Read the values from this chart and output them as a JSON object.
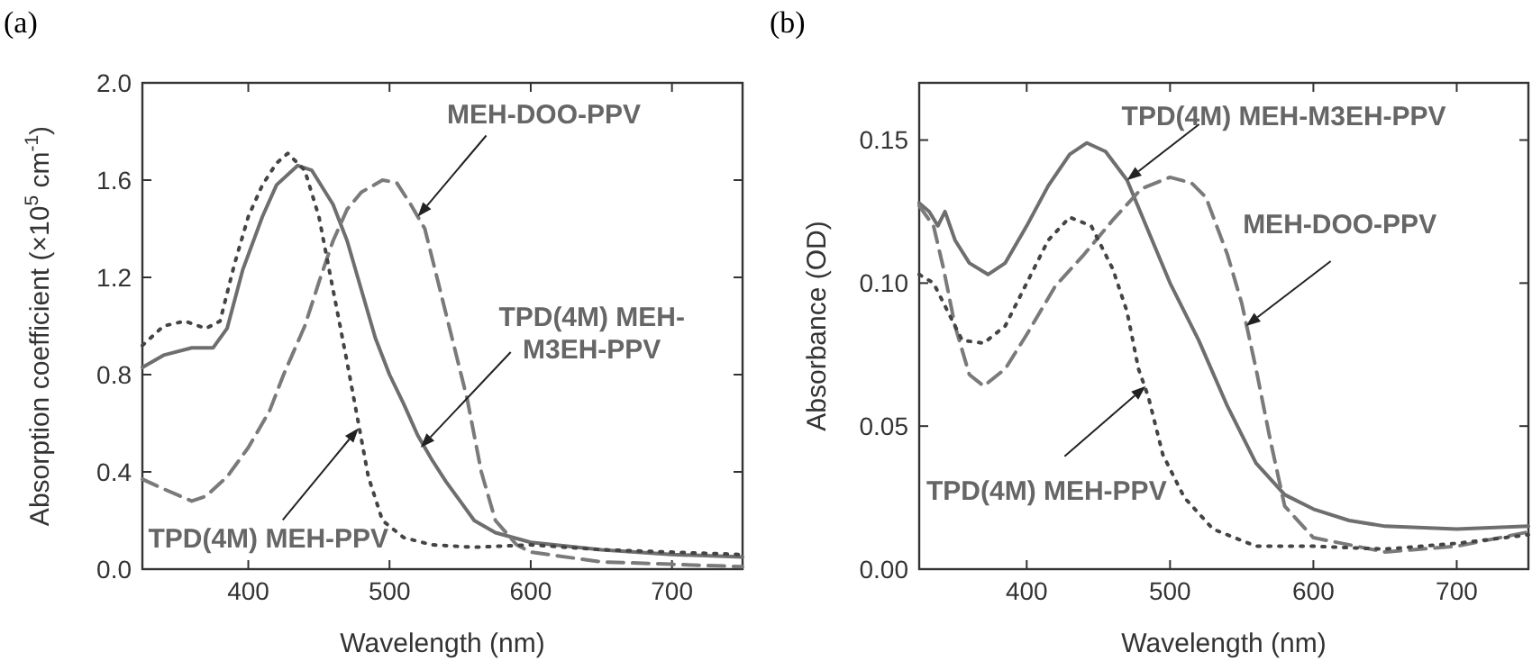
{
  "chart_data": [
    {
      "type": "line",
      "title": "(a)",
      "xlabel": "Wavelength (nm)",
      "ylabel": "Absorption coefficient (×10$^{5}$ cm$^{-1}$)",
      "xlim": [
        325,
        750
      ],
      "ylim": [
        0,
        2.0
      ],
      "xticks": [
        400,
        500,
        600,
        700
      ],
      "yticks": [
        {
          "value": 0,
          "label": "0.0"
        },
        0.4,
        0.8,
        1.2,
        1.6,
        {
          "value": 2,
          "label": "2.0"
        }
      ],
      "grid": false,
      "series": [
        {
          "color": "#6e6e6e",
          "line_style": "solid",
          "x": [
            325,
            340,
            360,
            375,
            385,
            396,
            410,
            420,
            435,
            445,
            460,
            470,
            480,
            490,
            500,
            510,
            520,
            530,
            540,
            550,
            560,
            575,
            600,
            650,
            700,
            750
          ],
          "values": [
            0.83,
            0.88,
            0.91,
            0.91,
            0.99,
            1.23,
            1.45,
            1.58,
            1.66,
            1.64,
            1.5,
            1.35,
            1.15,
            0.95,
            0.8,
            0.68,
            0.55,
            0.45,
            0.36,
            0.28,
            0.2,
            0.15,
            0.11,
            0.08,
            0.06,
            0.05
          ]
        },
        {
          "color": "#7a7a7a",
          "line_style": "dashed",
          "x": [
            325,
            340,
            360,
            370,
            385,
            400,
            415,
            425,
            440,
            450,
            460,
            470,
            480,
            495,
            505,
            515,
            525,
            540,
            555,
            565,
            575,
            590,
            600,
            650,
            700,
            750
          ],
          "values": [
            0.37,
            0.33,
            0.28,
            0.3,
            0.38,
            0.5,
            0.65,
            0.8,
            1.0,
            1.18,
            1.35,
            1.48,
            1.55,
            1.6,
            1.59,
            1.5,
            1.4,
            1.05,
            0.7,
            0.4,
            0.2,
            0.1,
            0.07,
            0.03,
            0.02,
            0.01
          ]
        },
        {
          "color": "#444444",
          "line_style": "dotted",
          "x": [
            325,
            340,
            355,
            370,
            380,
            390,
            400,
            410,
            420,
            428,
            440,
            450,
            460,
            470,
            478,
            485,
            495,
            510,
            530,
            560,
            600,
            650,
            700,
            750
          ],
          "values": [
            0.92,
            1.0,
            1.02,
            0.99,
            1.02,
            1.25,
            1.45,
            1.58,
            1.67,
            1.71,
            1.64,
            1.45,
            1.15,
            0.85,
            0.6,
            0.38,
            0.2,
            0.13,
            0.1,
            0.09,
            0.1,
            0.08,
            0.07,
            0.06
          ]
        }
      ],
      "annotations": [
        {
          "text": "MEH-DOO-PPV",
          "x": 520,
          "y": 1.45
        },
        {
          "text": "TPD(4M) MEH-\nM3EH-PPV",
          "x": 522,
          "y": 0.5
        },
        {
          "text": "TPD(4M) MEH-PPV",
          "x": 478,
          "y": 0.58
        }
      ]
    },
    {
      "type": "line",
      "title": "(b)",
      "xlabel": "Wavelength (nm)",
      "ylabel": "Absorbance (OD)",
      "xlim": [
        325,
        750
      ],
      "ylim": [
        0,
        0.17
      ],
      "xticks": [
        400,
        500,
        600,
        700
      ],
      "yticks": [
        {
          "value": 0,
          "label": "0.00"
        },
        0.05,
        {
          "value": 0.1,
          "label": "0.10"
        },
        0.15
      ],
      "grid": false,
      "series": [
        {
          "color": "#6e6e6e",
          "line_style": "solid",
          "x": [
            325,
            332,
            338,
            343,
            350,
            360,
            373,
            385,
            400,
            415,
            430,
            442,
            455,
            470,
            485,
            500,
            520,
            540,
            560,
            580,
            600,
            625,
            650,
            700,
            750
          ],
          "values": [
            0.128,
            0.125,
            0.12,
            0.125,
            0.115,
            0.107,
            0.103,
            0.107,
            0.12,
            0.134,
            0.145,
            0.149,
            0.146,
            0.136,
            0.118,
            0.1,
            0.08,
            0.057,
            0.037,
            0.026,
            0.021,
            0.017,
            0.015,
            0.014,
            0.015
          ]
        },
        {
          "color": "#7a7a7a",
          "line_style": "dashed",
          "x": [
            325,
            335,
            342,
            350,
            360,
            370,
            385,
            400,
            420,
            440,
            460,
            480,
            500,
            515,
            525,
            540,
            550,
            560,
            570,
            580,
            600,
            650,
            700,
            750
          ],
          "values": [
            0.127,
            0.12,
            0.105,
            0.085,
            0.068,
            0.064,
            0.07,
            0.082,
            0.099,
            0.11,
            0.122,
            0.133,
            0.137,
            0.135,
            0.13,
            0.11,
            0.093,
            0.07,
            0.045,
            0.022,
            0.011,
            0.006,
            0.008,
            0.013
          ]
        },
        {
          "color": "#444444",
          "line_style": "dotted",
          "x": [
            325,
            335,
            345,
            355,
            370,
            385,
            400,
            415,
            430,
            445,
            460,
            470,
            478,
            485,
            495,
            510,
            530,
            560,
            600,
            650,
            700,
            750
          ],
          "values": [
            0.103,
            0.1,
            0.09,
            0.08,
            0.079,
            0.085,
            0.1,
            0.115,
            0.123,
            0.12,
            0.105,
            0.09,
            0.07,
            0.06,
            0.04,
            0.025,
            0.014,
            0.008,
            0.008,
            0.007,
            0.009,
            0.012
          ]
        }
      ],
      "annotations": [
        {
          "text": "TPD(4M) MEH-M3EH-PPV",
          "x": 470,
          "y": 0.136
        },
        {
          "text": "MEH-DOO-PPV",
          "x": 553,
          "y": 0.085
        },
        {
          "text": "TPD(4M) MEH-PPV",
          "x": 483,
          "y": 0.064
        }
      ]
    }
  ]
}
